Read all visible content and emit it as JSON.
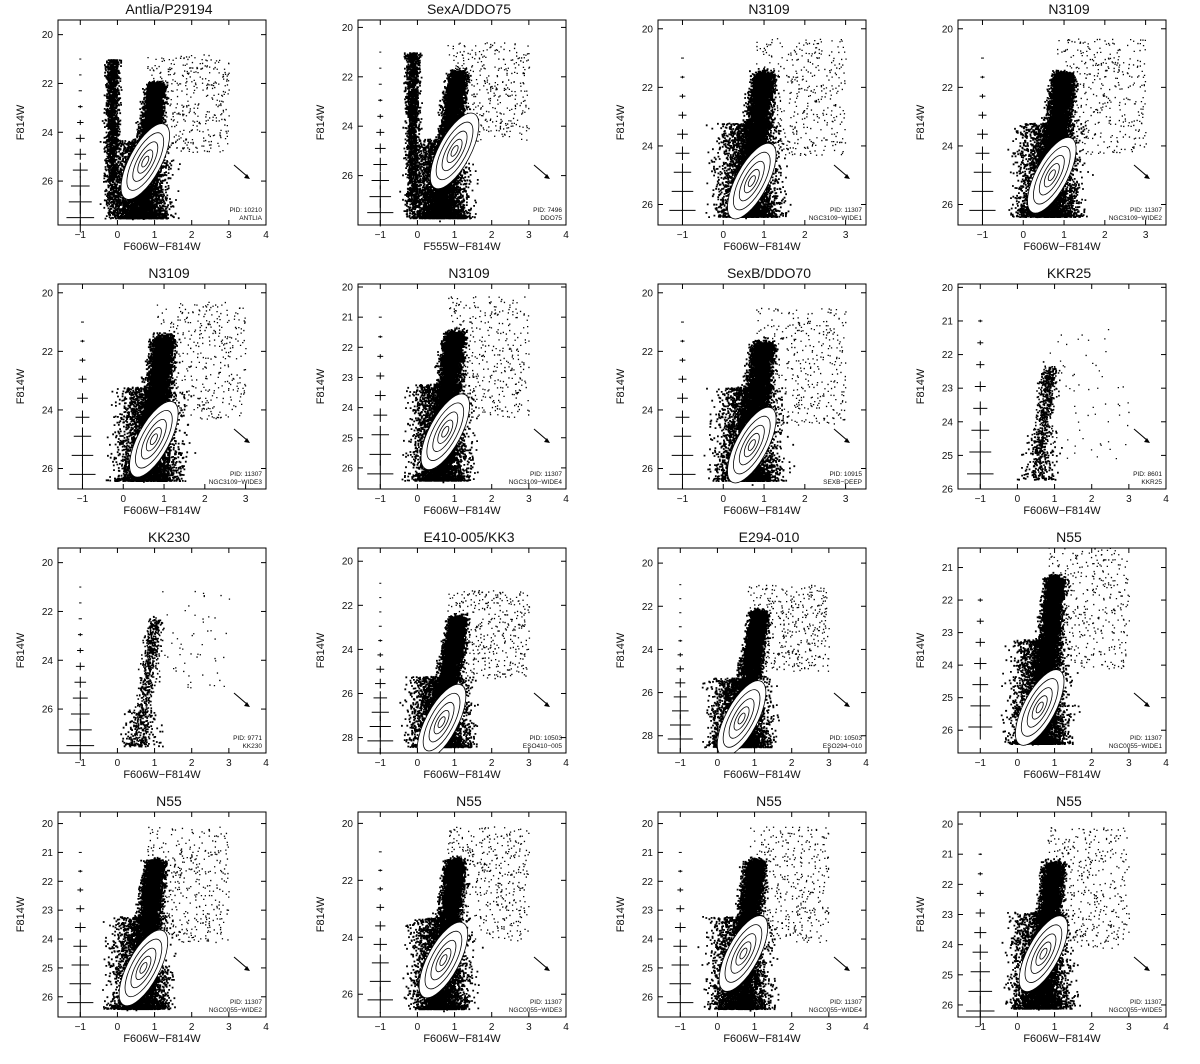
{
  "chart_data": [
    {
      "type": "scatter",
      "title": "Antlia/P29194",
      "xlabel": "F606W−F814W",
      "ylabel": "F814W",
      "xlim": [
        -1.6,
        4
      ],
      "ylim": [
        27.8,
        19.4
      ],
      "xticks": [
        -1,
        0,
        1,
        2,
        3,
        4
      ],
      "yticks": [
        20,
        22,
        24,
        26
      ],
      "annotation_pid": "PID: 10210",
      "annotation_field": "ANTLIA",
      "rgb_tip": 22,
      "red_clump": [
        0.75,
        25.2
      ],
      "blue_plume": true
    },
    {
      "type": "scatter",
      "title": "SexA/DDO75",
      "xlabel": "F555W−F814W",
      "ylabel": "F814W",
      "xlim": [
        -1.6,
        4
      ],
      "ylim": [
        28.0,
        19.7
      ],
      "xticks": [
        -1,
        0,
        1,
        2,
        3,
        4
      ],
      "yticks": [
        20,
        22,
        24,
        26
      ],
      "annotation_pid": "PID: 7496",
      "annotation_field": "DDO75",
      "rgb_tip": 21.8,
      "red_clump": [
        1.0,
        25.0
      ],
      "blue_plume": true
    },
    {
      "type": "scatter",
      "title": "N3109",
      "xlabel": "F606W−F814W",
      "ylabel": "F814W",
      "xlim": [
        -1.6,
        3.5
      ],
      "ylim": [
        26.7,
        19.7
      ],
      "xticks": [
        -1,
        0,
        1,
        2,
        3
      ],
      "yticks": [
        20,
        22,
        24,
        26
      ],
      "annotation_pid": "PID: 11307",
      "annotation_field": "NGC3109−WIDE1",
      "rgb_tip": 21.5,
      "red_clump": [
        0.7,
        25.2
      ],
      "blue_plume": false
    },
    {
      "type": "scatter",
      "title": "N3109",
      "xlabel": "F606W−F814W",
      "ylabel": "F814W",
      "xlim": [
        -1.6,
        3.5
      ],
      "ylim": [
        26.7,
        19.7
      ],
      "xticks": [
        -1,
        0,
        1,
        2,
        3
      ],
      "yticks": [
        20,
        22,
        24,
        26
      ],
      "annotation_pid": "PID: 11307",
      "annotation_field": "NGC3109−WIDE2",
      "rgb_tip": 21.5,
      "red_clump": [
        0.7,
        25.0
      ],
      "blue_plume": false
    },
    {
      "type": "scatter",
      "title": "N3109",
      "xlabel": "F606W−F814W",
      "ylabel": "F814W",
      "xlim": [
        -1.6,
        3.5
      ],
      "ylim": [
        26.7,
        19.7
      ],
      "xticks": [
        -1,
        0,
        1,
        2,
        3
      ],
      "yticks": [
        20,
        22,
        24,
        26
      ],
      "annotation_pid": "PID: 11307",
      "annotation_field": "NGC3109−WIDE3",
      "rgb_tip": 21.5,
      "red_clump": [
        0.75,
        25.0
      ],
      "blue_plume": false
    },
    {
      "type": "scatter",
      "title": "N3109",
      "xlabel": "F606W−F814W",
      "ylabel": "F814W",
      "xlim": [
        -1.6,
        4
      ],
      "ylim": [
        26.7,
        19.9
      ],
      "xticks": [
        -1,
        0,
        1,
        2,
        3,
        4
      ],
      "yticks": [
        20,
        21,
        22,
        23,
        24,
        25,
        26
      ],
      "annotation_pid": "PID: 11307",
      "annotation_field": "NGC3109−WIDE4",
      "rgb_tip": 21.5,
      "red_clump": [
        0.75,
        24.8
      ],
      "blue_plume": false
    },
    {
      "type": "scatter",
      "title": "SexB/DDO70",
      "xlabel": "F606W−F814W",
      "ylabel": "F814W",
      "xlim": [
        -1.6,
        3.5
      ],
      "ylim": [
        26.7,
        19.7
      ],
      "xticks": [
        -1,
        0,
        1,
        2,
        3
      ],
      "yticks": [
        20,
        22,
        24,
        26
      ],
      "annotation_pid": "PID: 10915",
      "annotation_field": "SEXB−DEEP",
      "rgb_tip": 21.7,
      "red_clump": [
        0.7,
        25.2
      ],
      "blue_plume": false
    },
    {
      "type": "scatter",
      "title": "KKR25",
      "xlabel": "F606W−F814W",
      "ylabel": "F814W",
      "xlim": [
        -1.6,
        4
      ],
      "ylim": [
        26,
        19.9
      ],
      "xticks": [
        -1,
        0,
        1,
        2,
        3,
        4
      ],
      "yticks": [
        20,
        21,
        22,
        23,
        24,
        25,
        26
      ],
      "annotation_pid": "PID: 8601",
      "annotation_field": "KKR25",
      "rgb_tip": 22.4,
      "red_clump": null,
      "blue_plume": false,
      "sparse": true
    },
    {
      "type": "scatter",
      "title": "KK230",
      "xlabel": "F606W−F814W",
      "ylabel": "F814W",
      "xlim": [
        -1.6,
        4
      ],
      "ylim": [
        27.8,
        19.4
      ],
      "xticks": [
        -1,
        0,
        1,
        2,
        3,
        4
      ],
      "yticks": [
        20,
        22,
        24,
        26
      ],
      "annotation_pid": "PID: 9771",
      "annotation_field": "KK230",
      "rgb_tip": 22.3,
      "red_clump": null,
      "blue_plume": false,
      "sparse": true
    },
    {
      "type": "scatter",
      "title": "E410-005/KK3",
      "xlabel": "F606W−F814W",
      "ylabel": "F814W",
      "xlim": [
        -1.6,
        4
      ],
      "ylim": [
        28.7,
        19.4
      ],
      "xticks": [
        -1,
        0,
        1,
        2,
        3,
        4
      ],
      "yticks": [
        20,
        22,
        24,
        26,
        28
      ],
      "annotation_pid": "PID: 10503",
      "annotation_field": "ESO410−005",
      "rgb_tip": 22.5,
      "red_clump": [
        0.65,
        27.3
      ],
      "blue_plume": false
    },
    {
      "type": "scatter",
      "title": "E294-010",
      "xlabel": "F606W−F814W",
      "ylabel": "F814W",
      "xlim": [
        -1.6,
        4
      ],
      "ylim": [
        28.8,
        19.3
      ],
      "xticks": [
        -1,
        0,
        1,
        2,
        3,
        4
      ],
      "yticks": [
        20,
        22,
        24,
        26,
        28
      ],
      "annotation_pid": "PID: 10503",
      "annotation_field": "ESO294−010",
      "rgb_tip": 22.2,
      "red_clump": [
        0.65,
        27.2
      ],
      "blue_plume": false
    },
    {
      "type": "scatter",
      "title": "N55",
      "xlabel": "F606W−F814W",
      "ylabel": "F814W",
      "xlim": [
        -1.6,
        4
      ],
      "ylim": [
        26.7,
        20.4
      ],
      "xticks": [
        -1,
        0,
        1,
        2,
        3,
        4
      ],
      "yticks": [
        21,
        22,
        23,
        24,
        25,
        26
      ],
      "annotation_pid": "PID: 11307",
      "annotation_field": "NGC0055−WIDE1",
      "rgb_tip": 21.3,
      "red_clump": [
        0.6,
        25.3
      ],
      "blue_plume": false
    },
    {
      "type": "scatter",
      "title": "N55",
      "xlabel": "F606W−F814W",
      "ylabel": "F814W",
      "xlim": [
        -1.6,
        4
      ],
      "ylim": [
        26.7,
        19.6
      ],
      "xticks": [
        -1,
        0,
        1,
        2,
        3,
        4
      ],
      "yticks": [
        20,
        21,
        22,
        23,
        24,
        25,
        26
      ],
      "annotation_pid": "PID: 11307",
      "annotation_field": "NGC0055−WIDE2",
      "rgb_tip": 21.3,
      "red_clump": [
        0.7,
        25.0
      ],
      "blue_plume": false
    },
    {
      "type": "scatter",
      "title": "N55",
      "xlabel": "F606W−F814W",
      "ylabel": "F814W",
      "xlim": [
        -1.6,
        4
      ],
      "ylim": [
        26.8,
        19.6
      ],
      "xticks": [
        -1,
        0,
        1,
        2,
        3,
        4
      ],
      "yticks": [
        20,
        22,
        24,
        26
      ],
      "annotation_pid": "PID: 11307",
      "annotation_field": "NGC0055−WIDE3",
      "rgb_tip": 21.3,
      "red_clump": [
        0.7,
        24.8
      ],
      "blue_plume": false
    },
    {
      "type": "scatter",
      "title": "N55",
      "xlabel": "F606W−F814W",
      "ylabel": "F814W",
      "xlim": [
        -1.6,
        4
      ],
      "ylim": [
        26.7,
        19.6
      ],
      "xticks": [
        -1,
        0,
        1,
        2,
        3,
        4
      ],
      "yticks": [
        20,
        21,
        22,
        23,
        24,
        25,
        26
      ],
      "annotation_pid": "PID: 11307",
      "annotation_field": "NGC0055−WIDE4",
      "rgb_tip": 21.3,
      "red_clump": [
        0.7,
        24.5
      ],
      "blue_plume": false
    },
    {
      "type": "scatter",
      "title": "N55",
      "xlabel": "F606W−F814W",
      "ylabel": "F814W",
      "xlim": [
        -1.6,
        4
      ],
      "ylim": [
        26.4,
        19.6
      ],
      "xticks": [
        -1,
        0,
        1,
        2,
        3,
        4
      ],
      "yticks": [
        20,
        21,
        22,
        23,
        24,
        25,
        26
      ],
      "annotation_pid": "PID: 11307",
      "annotation_field": "NGC0055−WIDE5",
      "rgb_tip": 21.3,
      "red_clump": [
        0.7,
        24.3
      ],
      "blue_plume": false
    }
  ]
}
